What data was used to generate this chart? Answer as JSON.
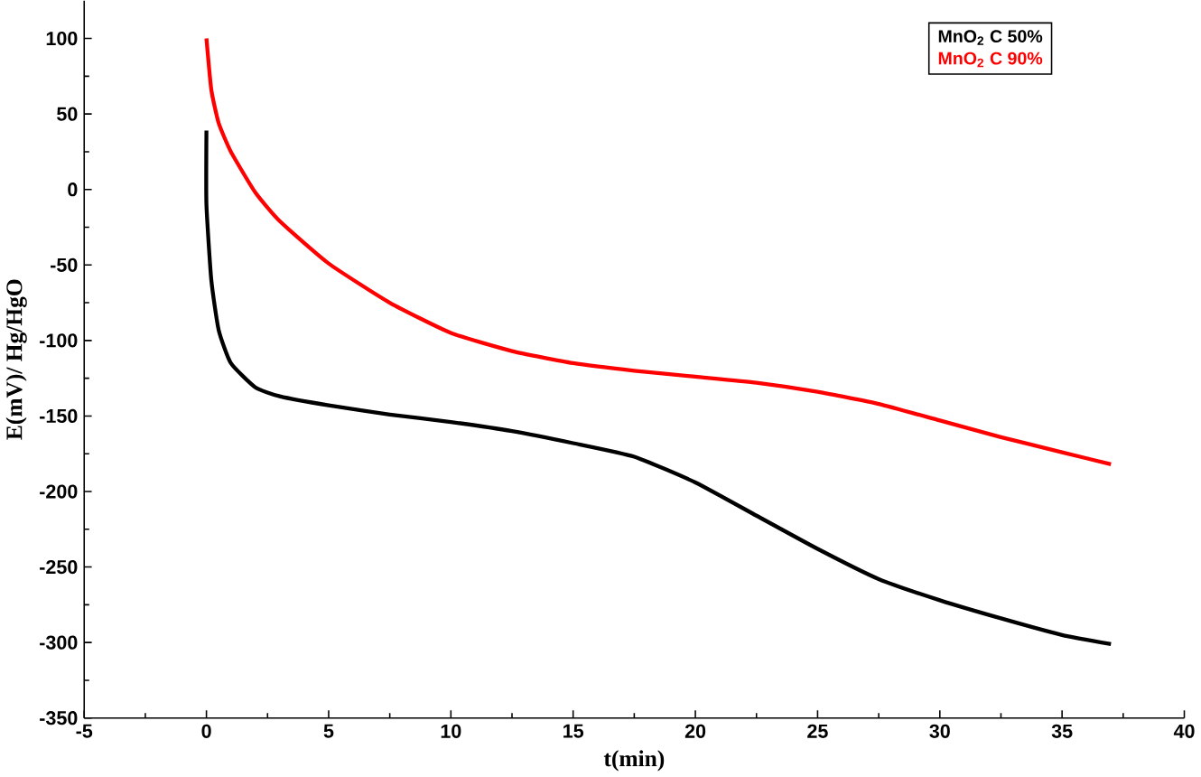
{
  "chart_data": {
    "type": "line",
    "xlabel": "t(min)",
    "ylabel": "E(mV)/ Hg/HgO",
    "xlim": [
      -5,
      40
    ],
    "xticks": [
      -5,
      0,
      5,
      10,
      15,
      20,
      25,
      30,
      35,
      40
    ],
    "ylim": [
      -350,
      125
    ],
    "yticks": [
      -350,
      -300,
      -250,
      -200,
      -150,
      -100,
      -50,
      0,
      50,
      100
    ],
    "grid": false,
    "legend": "top right",
    "line_style": "solid",
    "marker": "none",
    "series": [
      {
        "name": "MnO$_{2}$ C 50%",
        "color": "#000000",
        "x": [
          0,
          0,
          0.2,
          0.5,
          1,
          2,
          3,
          5,
          7.5,
          10,
          12.5,
          15,
          17.5,
          20,
          22.5,
          25,
          27.5,
          30,
          32.5,
          35,
          37
        ],
        "values": [
          39,
          -10,
          -60,
          -93,
          -115,
          -131,
          -137,
          -143,
          -149,
          -154,
          -160,
          -168,
          -177,
          -194,
          -216,
          -238,
          -258,
          -272,
          -284,
          -295,
          -301
        ]
      },
      {
        "name": "MnO$_{2}$ C 90%",
        "color": "#ff0000",
        "x": [
          0,
          0.2,
          0.5,
          1,
          2,
          3,
          5,
          7.5,
          10,
          12.5,
          15,
          17.5,
          20,
          22.5,
          25,
          27.5,
          30,
          32.5,
          35,
          37
        ],
        "values": [
          100,
          66,
          44,
          25,
          -2,
          -21,
          -49,
          -75,
          -95,
          -107,
          -115,
          -120,
          -124,
          -128,
          -134,
          -142,
          -153,
          -164,
          -174,
          -182
        ]
      }
    ]
  }
}
